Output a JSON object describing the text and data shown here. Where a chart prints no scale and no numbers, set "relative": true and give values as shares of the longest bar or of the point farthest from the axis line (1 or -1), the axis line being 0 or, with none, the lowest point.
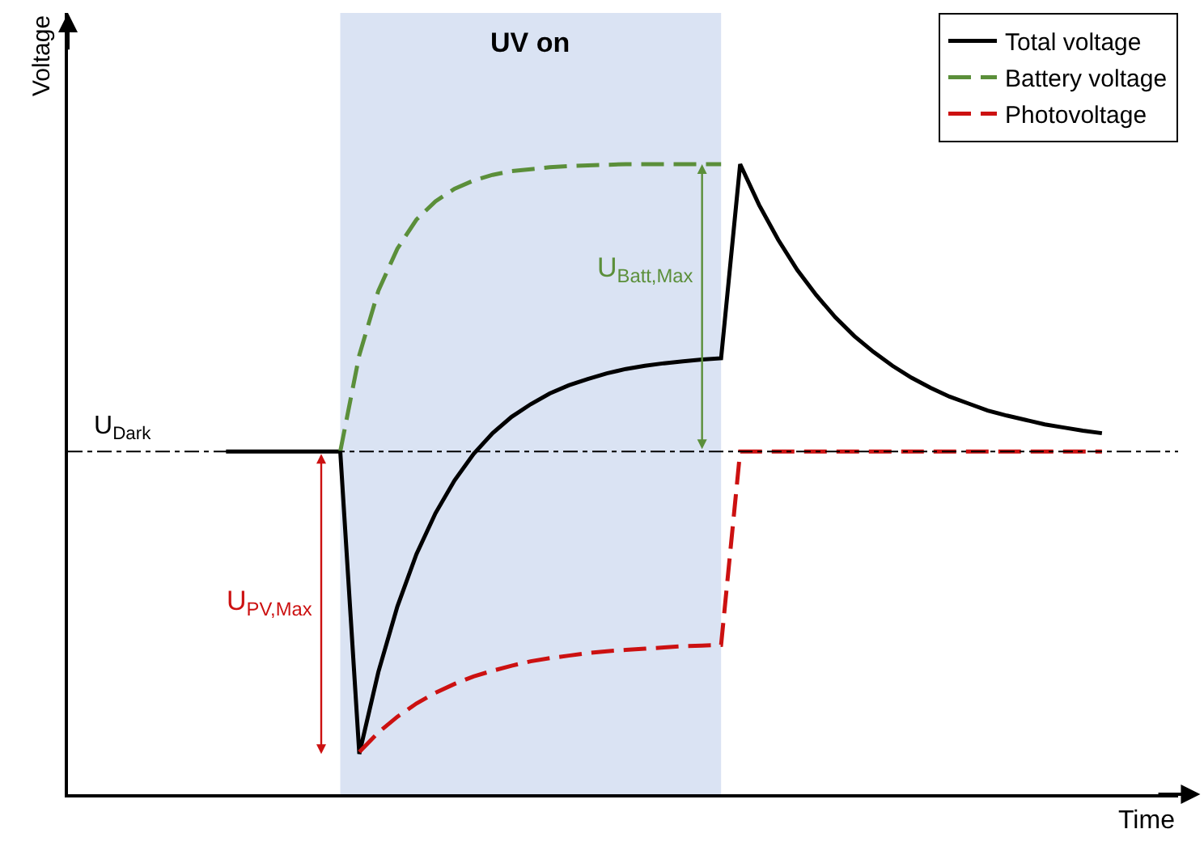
{
  "chart_data": {
    "type": "line",
    "relative": true,
    "xlabel": "Time",
    "ylabel": "Voltage",
    "legend": "top right",
    "marker": "none",
    "categories": [
      null,
      null,
      null,
      null,
      null,
      null,
      null,
      null,
      null,
      null,
      null,
      null,
      null,
      null,
      null,
      null,
      null,
      null,
      null,
      null,
      null,
      null,
      null,
      null,
      null,
      null,
      null,
      null,
      null,
      null,
      null,
      null,
      null,
      null,
      null,
      null,
      null,
      null,
      null,
      null,
      null,
      null,
      null,
      null,
      null,
      null,
      null,
      null,
      null,
      null,
      null,
      null,
      null,
      null,
      null,
      null,
      null,
      null
    ],
    "series": [
      {
        "name": "Total voltage",
        "color": "#000000",
        "line_style": "solid",
        "values": [
          null,
          null,
          null,
          null,
          null,
          null,
          null,
          null,
          0.544,
          0.544,
          0.544,
          0.544,
          0.544,
          0.544,
          0.544,
          0.064,
          0.194,
          0.298,
          0.381,
          0.446,
          0.498,
          0.54,
          0.573,
          0.599,
          0.619,
          0.636,
          0.649,
          0.659,
          0.668,
          0.675,
          0.68,
          0.684,
          0.687,
          0.69,
          0.692,
          1.0,
          0.935,
          0.88,
          0.832,
          0.792,
          0.757,
          0.727,
          0.702,
          0.68,
          0.661,
          0.645,
          0.631,
          0.62,
          0.609,
          0.601,
          0.594,
          0.587,
          0.582,
          0.577,
          0.573,
          null,
          null,
          null
        ]
      },
      {
        "name": "Battery voltage",
        "color": "#5b8f3a",
        "line_style": "dashed",
        "values": [
          null,
          null,
          null,
          null,
          null,
          null,
          null,
          null,
          null,
          null,
          null,
          null,
          null,
          null,
          0.544,
          0.697,
          0.799,
          0.866,
          0.912,
          0.941,
          0.961,
          0.974,
          0.983,
          0.989,
          0.992,
          0.995,
          0.997,
          0.998,
          0.999,
          1.0,
          1.0,
          1.0,
          1.0,
          1.0,
          1.0,
          null,
          null,
          null,
          null,
          null,
          null,
          null,
          null,
          null,
          null,
          null,
          null,
          null,
          null,
          null,
          null,
          null,
          null,
          null,
          null,
          null,
          null,
          null
        ]
      },
      {
        "name": "Photovoltage",
        "color": "#cc1111",
        "line_style": "dashed",
        "values": [
          null,
          null,
          null,
          null,
          null,
          null,
          null,
          null,
          null,
          null,
          null,
          null,
          null,
          null,
          null,
          0.067,
          0.098,
          0.123,
          0.144,
          0.161,
          0.175,
          0.187,
          0.196,
          0.204,
          0.211,
          0.216,
          0.22,
          0.224,
          0.227,
          0.229,
          0.231,
          0.233,
          0.235,
          0.236,
          0.237,
          0.544,
          0.544,
          0.544,
          0.544,
          0.544,
          0.544,
          0.544,
          0.544,
          0.544,
          0.544,
          0.544,
          0.544,
          0.544,
          0.544,
          0.544,
          0.544,
          0.544,
          0.544,
          0.544,
          0.544,
          null,
          null,
          null
        ]
      }
    ],
    "ref_lines": [
      {
        "axis": "y",
        "value": 0.544,
        "label": "U$_{Dark}$",
        "color": "#000000",
        "line_style": "dashdot"
      }
    ],
    "annotations": [
      "UV on",
      "U$_{PV,Max}$",
      "U$_{Batt,Max}$"
    ]
  }
}
